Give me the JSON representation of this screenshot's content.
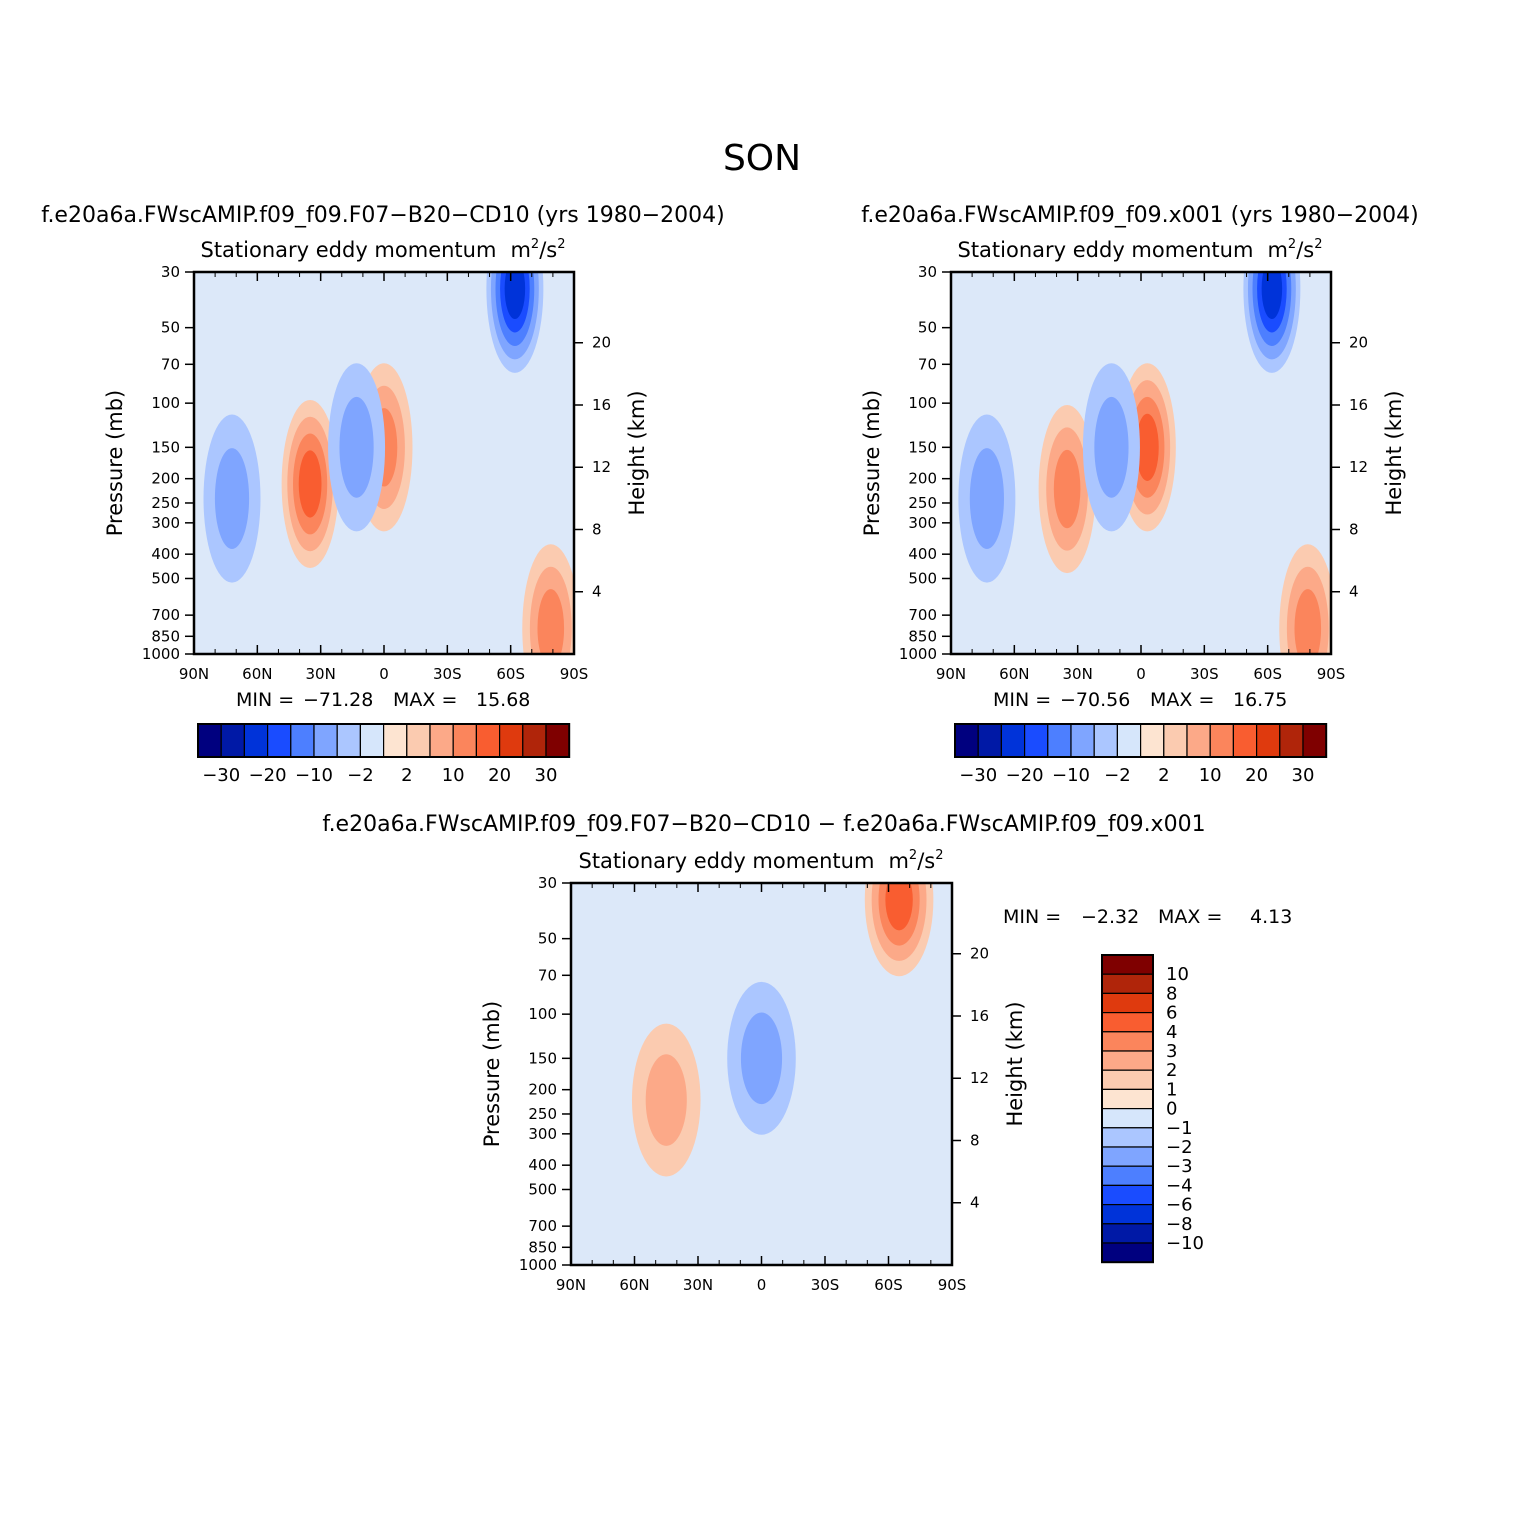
{
  "page_title": "SON",
  "common": {
    "subtitle": "Stationary eddy momentum",
    "units_base": "m",
    "units_sup1": "2",
    "units_mid": "/s",
    "units_sup2": "2",
    "ylabel_left": "Pressure (mb)",
    "ylabel_right": "Height (km)",
    "pressure_ticks": [
      "30",
      "50",
      "70",
      "100",
      "150",
      "200",
      "250",
      "300",
      "400",
      "500",
      "700",
      "850",
      "1000"
    ],
    "pressure_values": [
      30,
      50,
      70,
      100,
      150,
      200,
      250,
      300,
      400,
      500,
      700,
      850,
      1000
    ],
    "height_ticks": [
      "20",
      "16",
      "12",
      "8",
      "4"
    ],
    "height_values": [
      20,
      16,
      12,
      8,
      4
    ],
    "lat_ticks": [
      "90N",
      "60N",
      "30N",
      "0",
      "30S",
      "60S",
      "90S"
    ],
    "lat_values": [
      90,
      60,
      30,
      0,
      -30,
      -60,
      -90
    ],
    "min_label": "MIN =",
    "max_label": "MAX ="
  },
  "panels": [
    {
      "case_title": "f.e20a6a.FWscAMIP.f09_f09.F07−B20−CD10 (yrs 1980−2004)",
      "min": "−71.28",
      "max": "15.68"
    },
    {
      "case_title": "f.e20a6a.FWscAMIP.f09_f09.x001 (yrs 1980−2004)",
      "min": "−70.56",
      "max": "16.75"
    },
    {
      "case_title": "f.e20a6a.FWscAMIP.f09_f09.F07−B20−CD10 − f.e20a6a.FWscAMIP.f09_f09.x001",
      "min": "−2.32",
      "max": "4.13"
    }
  ],
  "colorbar_main": {
    "labels": [
      "−30",
      "−20",
      "−10",
      "−2",
      "2",
      "10",
      "20",
      "30"
    ],
    "levels": [
      -30,
      -25,
      -20,
      -15,
      -10,
      -6,
      -2,
      0,
      2,
      6,
      10,
      15,
      20,
      25,
      30
    ]
  },
  "colorbar_diff": {
    "labels": [
      "10",
      "8",
      "6",
      "4",
      "3",
      "2",
      "1",
      "0",
      "−1",
      "−2",
      "−3",
      "−4",
      "−6",
      "−8",
      "−10"
    ],
    "levels": [
      10,
      8,
      6,
      4,
      3,
      2,
      1,
      0,
      -1,
      -2,
      -3,
      -4,
      -6,
      -8,
      -10
    ]
  },
  "colors": [
    "#00007f",
    "#0019a6",
    "#0033d9",
    "#1a4cff",
    "#4d7fff",
    "#7fa5ff",
    "#abc6ff",
    "#d6e6fb",
    "#fde4d1",
    "#fbcbb0",
    "#fca988",
    "#fb855c",
    "#f95d30",
    "#df3a0e",
    "#b0250a",
    "#7f0000"
  ],
  "chart_data": [
    {
      "type": "heatmap",
      "title": "f.e20a6a.FWscAMIP.f09_f09.F07−B20−CD10 (yrs 1980−2004)",
      "subtitle": "Stationary eddy momentum",
      "xlabel": "",
      "ylabel": "Pressure (mb)",
      "xlim": [
        90,
        -90
      ],
      "ylim": [
        1000,
        30
      ],
      "yscale": "log",
      "min": -71.28,
      "max": 15.68,
      "features": [
        {
          "kind": "max",
          "lat": 35,
          "pressure": 210,
          "value": 15
        },
        {
          "kind": "max",
          "lat": 0,
          "pressure": 150,
          "value": 12
        },
        {
          "kind": "min",
          "lat": -62,
          "pressure": 35,
          "value": -20
        },
        {
          "kind": "min",
          "lat": 72,
          "pressure": 240,
          "value": -6
        },
        {
          "kind": "min",
          "lat": 13,
          "pressure": 150,
          "value": -6
        },
        {
          "kind": "min",
          "lat": -86,
          "pressure": 920,
          "value": -71.28
        },
        {
          "kind": "max",
          "lat": -79,
          "pressure": 790,
          "value": 10
        }
      ]
    },
    {
      "type": "heatmap",
      "title": "f.e20a6a.FWscAMIP.f09_f09.x001 (yrs 1980−2004)",
      "subtitle": "Stationary eddy momentum",
      "xlabel": "",
      "ylabel": "Pressure (mb)",
      "xlim": [
        90,
        -90
      ],
      "ylim": [
        1000,
        30
      ],
      "yscale": "log",
      "min": -70.56,
      "max": 16.75,
      "features": [
        {
          "kind": "max",
          "lat": 35,
          "pressure": 220,
          "value": 14
        },
        {
          "kind": "max",
          "lat": -3,
          "pressure": 150,
          "value": 16
        },
        {
          "kind": "min",
          "lat": -62,
          "pressure": 35,
          "value": -22
        },
        {
          "kind": "min",
          "lat": 73,
          "pressure": 240,
          "value": -6
        },
        {
          "kind": "min",
          "lat": 14,
          "pressure": 150,
          "value": -6
        },
        {
          "kind": "min",
          "lat": -86,
          "pressure": 920,
          "value": -70.56
        },
        {
          "kind": "max",
          "lat": -79,
          "pressure": 790,
          "value": 10
        }
      ]
    },
    {
      "type": "heatmap",
      "title": "f.e20a6a.FWscAMIP.f09_f09.F07−B20−CD10 − f.e20a6a.FWscAMIP.f09_f09.x001",
      "subtitle": "Stationary eddy momentum",
      "xlabel": "",
      "ylabel": "Pressure (mb)",
      "xlim": [
        90,
        -90
      ],
      "ylim": [
        1000,
        30
      ],
      "yscale": "log",
      "min": -2.32,
      "max": 4.13,
      "features": [
        {
          "kind": "max",
          "lat": -65,
          "pressure": 35,
          "value": 4.1
        },
        {
          "kind": "max",
          "lat": 45,
          "pressure": 220,
          "value": 2.5
        },
        {
          "kind": "min",
          "lat": 0,
          "pressure": 150,
          "value": -2.3
        }
      ]
    }
  ]
}
